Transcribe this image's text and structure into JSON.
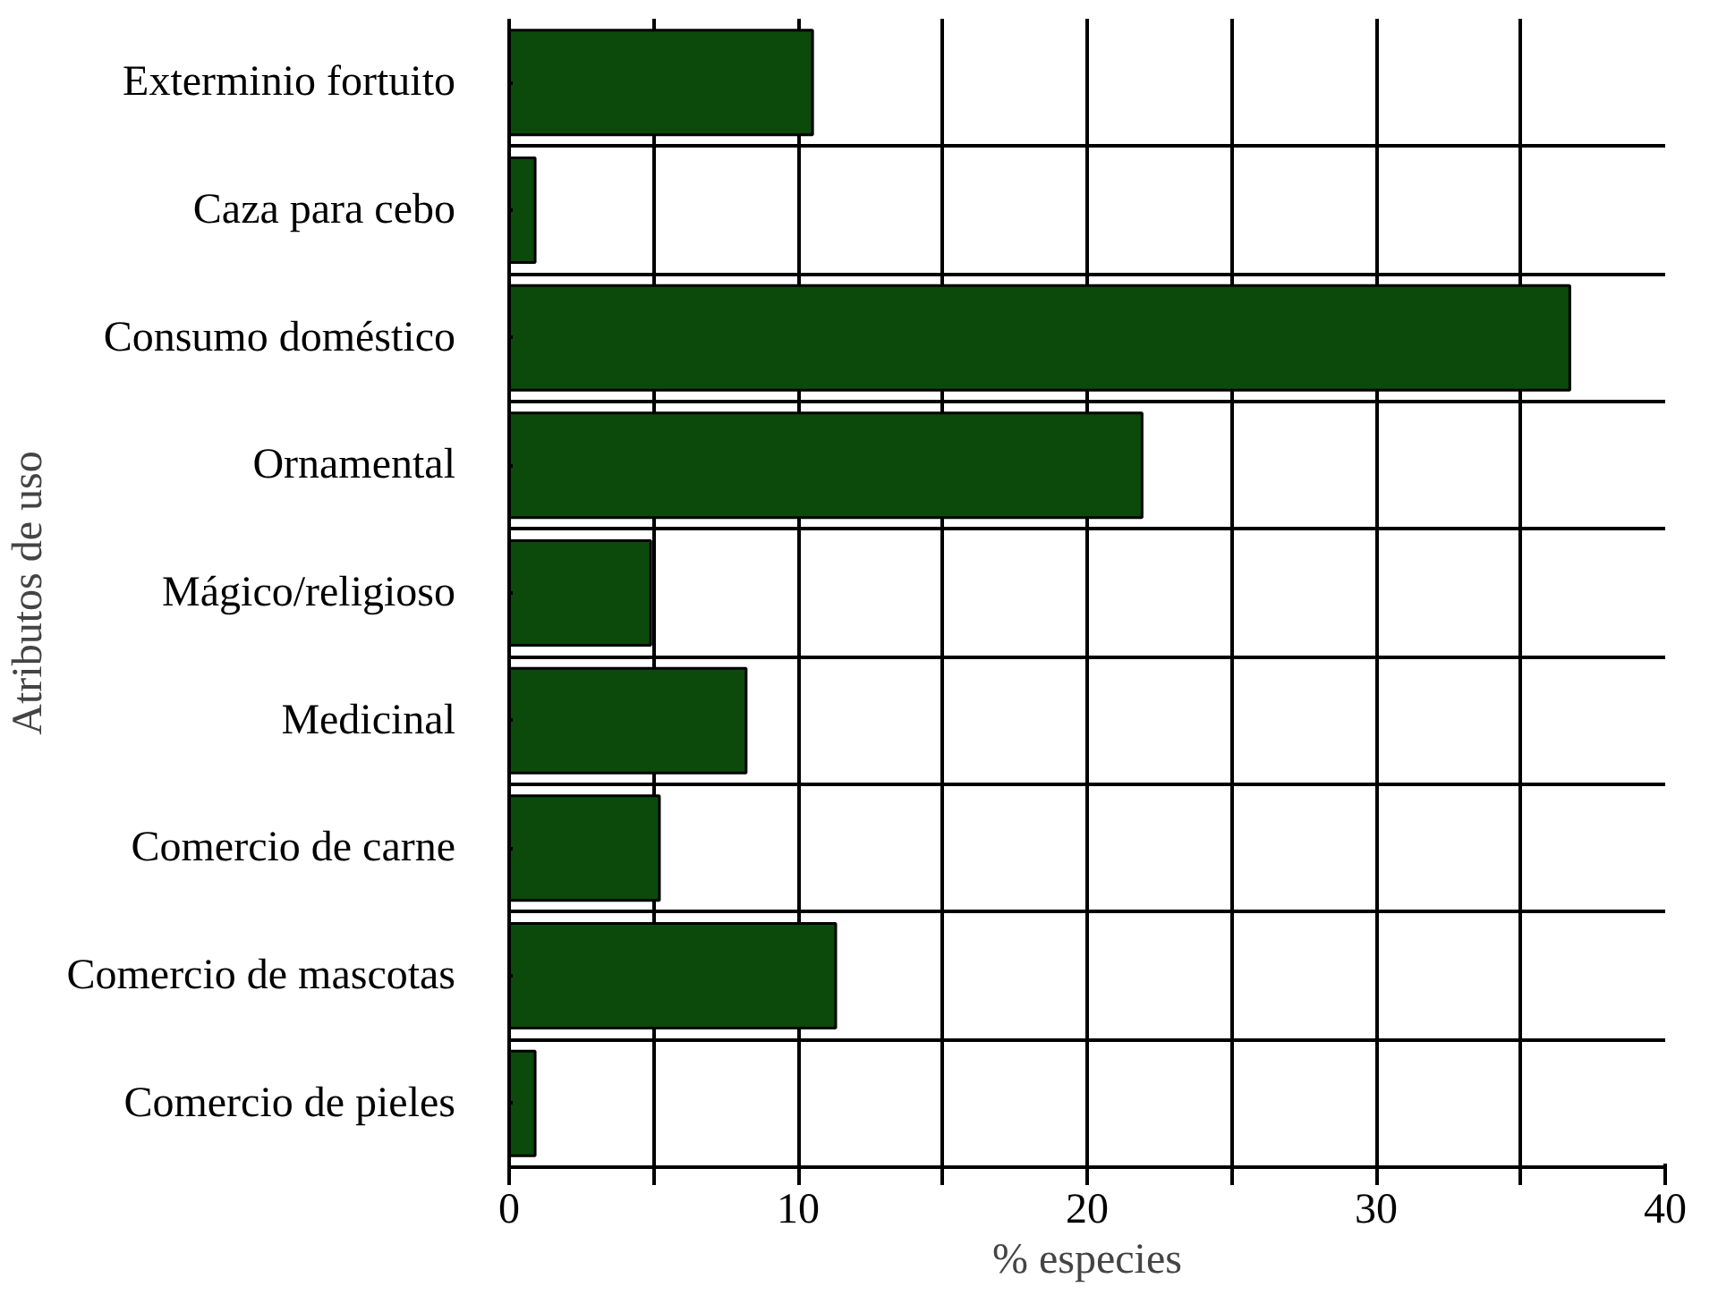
{
  "chart_data": {
    "type": "bar",
    "orientation": "horizontal",
    "xlabel": "% especies",
    "ylabel": "Atributos de uso",
    "categories": [
      "Exterminio fortuito",
      "Caza para cebo",
      "Consumo doméstico",
      "Ornamental",
      "Mágico/religioso",
      "Medicinal",
      "Comercio de carne",
      "Comercio de mascotas",
      "Comercio de pieles"
    ],
    "values": [
      10.5,
      0.9,
      36.7,
      21.9,
      4.9,
      8.2,
      5.2,
      11.3,
      0.9
    ],
    "color": "#0b4a0b",
    "xlim": [
      0,
      40
    ],
    "xticks": [
      0,
      {
        "value": 5,
        "label": null
      },
      10,
      {
        "value": 15,
        "label": null
      },
      20,
      {
        "value": 25,
        "label": null
      },
      30,
      {
        "value": 35,
        "label": null
      },
      40
    ],
    "grid": true
  }
}
